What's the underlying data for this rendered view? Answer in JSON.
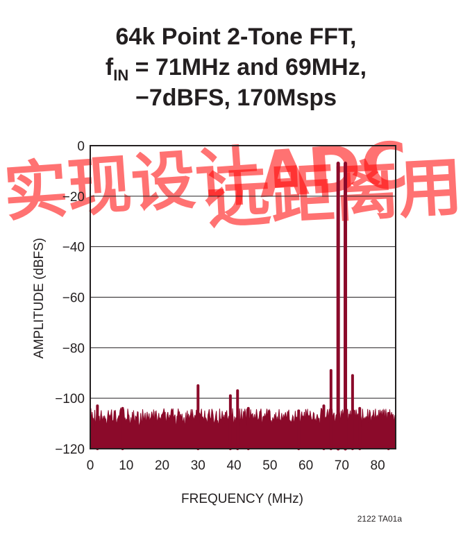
{
  "chart_data": {
    "type": "line",
    "title_lines": [
      {
        "text": "64k Point 2-Tone FFT,"
      },
      {
        "prefix": "f",
        "sub": "IN",
        "text": " = 71MHz and 69MHz,"
      },
      {
        "text": "−7dBFS, 170Msps"
      }
    ],
    "xlabel": "FREQUENCY (MHz)",
    "ylabel": "AMPLITUDE (dBFS)",
    "xlim": [
      0,
      85
    ],
    "ylim": [
      -120,
      0
    ],
    "xticks": [
      0,
      10,
      20,
      30,
      40,
      50,
      60,
      70,
      80
    ],
    "yticks": [
      0,
      -20,
      -40,
      -60,
      -80,
      -100,
      -120
    ],
    "xtick_labels": [
      "0",
      "10",
      "20",
      "30",
      "40",
      "50",
      "60",
      "70",
      "80"
    ],
    "ytick_labels": [
      "0",
      "−20",
      "−40",
      "−60",
      "−80",
      "−100",
      "−120"
    ],
    "grid": "horizontal",
    "noise_floor_range": [
      -115,
      -104
    ],
    "series": [
      {
        "color": "#8b0a2a",
        "peaks": [
          {
            "x": 69,
            "y": -7
          },
          {
            "x": 71,
            "y": -7
          },
          {
            "x": 67,
            "y": -89
          },
          {
            "x": 73,
            "y": -91
          },
          {
            "x": 30,
            "y": -95
          },
          {
            "x": 41,
            "y": -97
          },
          {
            "x": 39,
            "y": -99
          },
          {
            "x": 65,
            "y": -103
          },
          {
            "x": 75,
            "y": -104
          },
          {
            "x": 2,
            "y": -103
          },
          {
            "x": 9,
            "y": -104
          },
          {
            "x": 44,
            "y": -104
          },
          {
            "x": 58,
            "y": -105
          },
          {
            "x": 83,
            "y": -106
          }
        ]
      }
    ],
    "figure_id": "2122 TA01a",
    "watermark_color": "#ff0000"
  }
}
